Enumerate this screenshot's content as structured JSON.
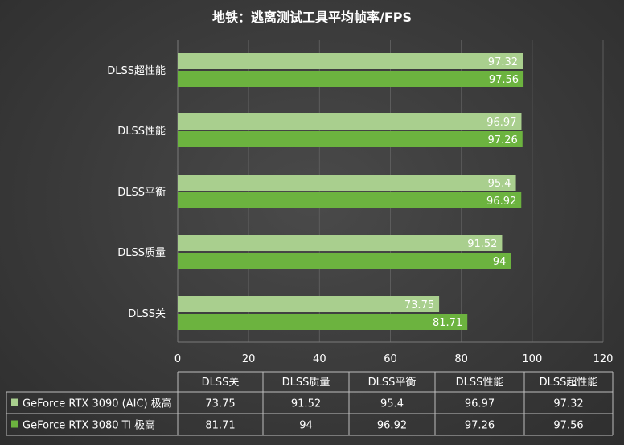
{
  "chart_data": {
    "type": "bar",
    "orientation": "horizontal",
    "title": "地铁：逃离测试工具平均帧率/FPS",
    "categories": [
      "DLSS超性能",
      "DLSS性能",
      "DLSS平衡",
      "DLSS质量",
      "DLSS关"
    ],
    "series": [
      {
        "name": "GeForce RTX 3090 (AIC) 极高",
        "values": [
          97.32,
          96.97,
          95.4,
          91.52,
          73.75
        ],
        "color": "#a9cf8e"
      },
      {
        "name": "GeForce RTX 3080 Ti 极高",
        "values": [
          97.56,
          97.26,
          96.92,
          94,
          81.71
        ],
        "color": "#6cb33f"
      }
    ],
    "xlim": [
      0,
      120
    ],
    "xticks": [
      0,
      20,
      40,
      60,
      80,
      100,
      120
    ],
    "grid": true,
    "data_table": {
      "columns": [
        "DLSS关",
        "DLSS质量",
        "DLSS平衡",
        "DLSS性能",
        "DLSS超性能"
      ],
      "rows": [
        {
          "series": "GeForce RTX 3090 (AIC) 极高",
          "values": [
            "73.75",
            "91.52",
            "95.4",
            "96.97",
            "97.32"
          ]
        },
        {
          "series": "GeForce RTX 3080 Ti 极高",
          "values": [
            "81.71",
            "94",
            "96.92",
            "97.26",
            "97.56"
          ]
        }
      ]
    }
  }
}
